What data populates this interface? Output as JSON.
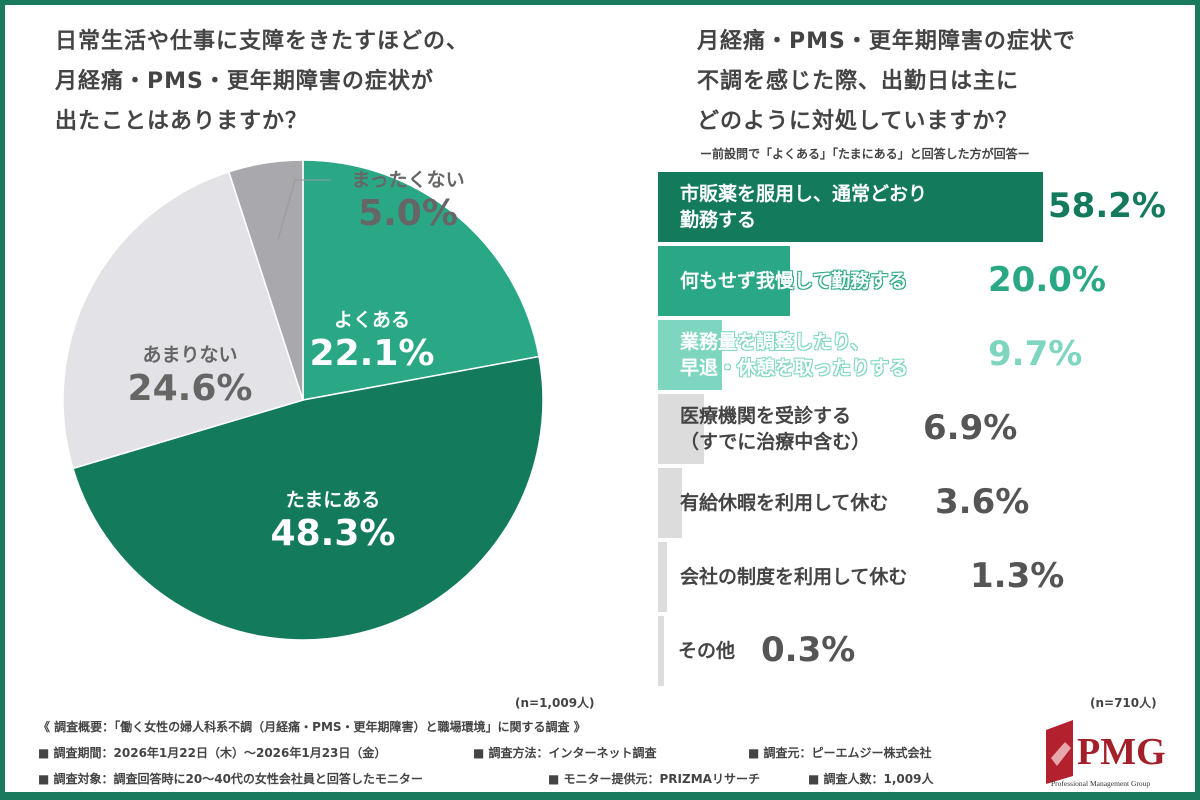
{
  "chart_data": [
    {
      "type": "pie",
      "title": "日常生活や仕事に支障をきたすほどの、\n月経痛・PMS・更年期障害の症状が\n出たことはありますか？",
      "slices": [
        {
          "label": "よくある",
          "value": 22.1,
          "color": "#2aa886"
        },
        {
          "label": "たまにある",
          "value": 48.3,
          "color": "#147a5c"
        },
        {
          "label": "あまりない",
          "value": 24.6,
          "color": "#e3e2e6"
        },
        {
          "label": "まったくない",
          "value": 5.0,
          "color": "#a9a9ad"
        }
      ],
      "note": "(n=1,009人)"
    },
    {
      "type": "bar",
      "orientation": "horizontal",
      "title": "月経痛・PMS・更年期障害の症状で\n不調を感じた際、出勤日は主に\nどのように対処していますか？",
      "subtitle": "ー前設問で「よくある」「たまにある」と回答した方が回答ー",
      "categories": [
        "市販薬を服用し、通常どおり\n勤務する",
        "何もせず我慢して勤務する",
        "業務量を調整したり、\n早退・休憩を取ったりする",
        "医療機関を受診する\n（すでに治療中含む）",
        "有給休暇を利用して休む",
        "会社の制度を利用して休む",
        "その他"
      ],
      "values": [
        58.2,
        20.0,
        9.7,
        6.9,
        3.6,
        1.3,
        0.3
      ],
      "colors": [
        "#147a5c",
        "#2aa886",
        "#7fd6c0",
        "#dcdcdc",
        "#dcdcdc",
        "#dcdcdc",
        "#dcdcdc"
      ],
      "value_colors": [
        "#147a5c",
        "#2aa886",
        "#7fd6c0",
        "#555555",
        "#555555",
        "#555555",
        "#555555"
      ],
      "note": "(n=710人)"
    }
  ],
  "footer": {
    "title": "《 調査概要：「働く女性の婦人科系不調（月経痛・PMS・更年期障害）と職場環境」に関する調査 》",
    "period": "■ 調査期間：2026年1月22日（木）～2026年1月23日（金）",
    "method": "■ 調査方法：インターネット調査",
    "source": "■ 調査元：ピーエムジー株式会社",
    "target": "■ 調査対象：調査回答時に20～40代の女性会社員と回答したモニター",
    "provider": "■ モニター提供元：PRIZMAリサーチ",
    "count": "■ 調査人数：1,009人"
  },
  "logo": {
    "text": "PMG",
    "sub": "Professional Management Group"
  }
}
